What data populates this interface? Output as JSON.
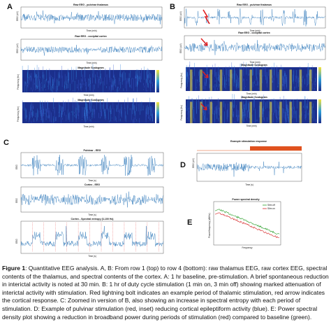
{
  "panels": {
    "A": "A",
    "B": "B",
    "C": "C",
    "D": "D",
    "E": "E"
  },
  "titles": {
    "raw_thal": "Raw EEG - pulvinar thalamus",
    "raw_cortex": "Raw EEG - occipital cortex",
    "scalogram": "Magnitude Scalogram",
    "c_pulvinar": "Pulvinar - EEG",
    "c_cortex": "Cortex - EEG",
    "c_entropy": "Cortex - Spectral entropy (3-100 Hz)",
    "d_title": "Example stimulation response",
    "e_title": "Power spectral density"
  },
  "axes": {
    "eeg_uv": "EEG (uV)",
    "time_min": "Time (min)",
    "time_s": "Time (s)",
    "frequency_hz": "Frequency (Hz)",
    "frequency": "Frequency",
    "power_freq": "Power/frequency (dB/Hz)",
    "eeg": "EEG",
    "scale_1e4": "x10^4"
  },
  "legend": {
    "stim_off": "Stim off",
    "stim_on": "Stim on"
  },
  "colors": {
    "signal": "#1f6fb4",
    "scalogram_bg": "#1b2f8c",
    "scalogram_mid": "#2e7fd8",
    "scalogram_hot": "#f5e33b",
    "stim_bar": "#e0521f",
    "arrow": "#e02020",
    "psd_off": "#2ca02c",
    "psd_on": "#d62728"
  },
  "caption": {
    "label": "Figure 1",
    "text": ": Quantitative EEG analysis. A, B: From row 1 (top) to row 4 (bottom): raw thalamus EEG, raw cortex EEG, spectral contents of the thalamus, and spectral contents of the cortex. A: 1 hr baseline, pre-stimulation. A brief spontaneous reduction in interictal activity is noted at 30 min. B: 1 hr of duty cycle stimulation (1 min on, 3 min off) showing marked attenuation of interictal activity with stimulation. Red lightning bolt indicates an example period of thalamic stimulation, red arrow indicates the cortical response. C: Zoomed in version of B, also showing an increase in spectral entropy with each period of stimulation. D: Example of pulvinar stimulation (red, inset) reducing cortical epileptiform activity (blue). E: Power spectral density plot showing a reduction in broadband power during periods of stimulation (red) compared to baseline (green)."
  }
}
